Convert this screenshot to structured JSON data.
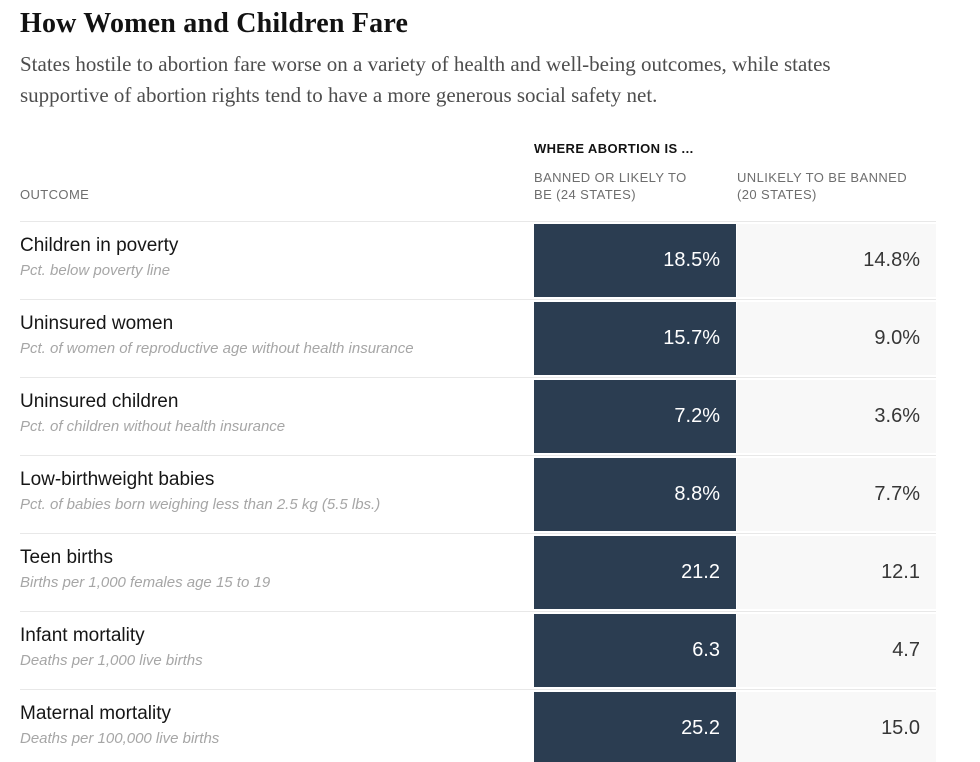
{
  "page": {
    "title": "How Women and Children Fare",
    "subtitle": "States hostile to abortion fare worse on a variety of health and well-being outcomes, while states supportive of abortion rights tend to have a more generous social safety net."
  },
  "table_header": {
    "group": "WHERE ABORTION IS ...",
    "outcome": "OUTCOME",
    "banned_line1": "BANNED OR LIKELY TO",
    "banned_line2": "BE (24 STATES)",
    "unlikely_line1": "UNLIKELY TO BE BANNED",
    "unlikely_line2": "(20 STATES)"
  },
  "chart_data": {
    "type": "table",
    "title": "How Women and Children Fare",
    "subtitle": "States hostile to abortion fare worse on a variety of health and well-being outcomes, while states supportive of abortion rights tend to have a more generous social safety net.",
    "group_header": "WHERE ABORTION IS ...",
    "columns": [
      "OUTCOME",
      "BANNED OR LIKELY TO BE (24 STATES)",
      "UNLIKELY TO BE BANNED (20 STATES)"
    ],
    "rows": [
      {
        "outcome": "Children in poverty",
        "description": "Pct. below poverty line",
        "banned": "18.5%",
        "unlikely": "14.8%"
      },
      {
        "outcome": "Uninsured women",
        "description": "Pct. of women of reproductive age without health insurance",
        "banned": "15.7%",
        "unlikely": "9.0%"
      },
      {
        "outcome": "Uninsured children",
        "description": "Pct. of children without health insurance",
        "banned": "7.2%",
        "unlikely": "3.6%"
      },
      {
        "outcome": "Low-birthweight babies",
        "description": "Pct. of babies born weighing less than 2.5 kg (5.5 lbs.)",
        "banned": "8.8%",
        "unlikely": "7.7%"
      },
      {
        "outcome": "Teen births",
        "description": "Births per 1,000 females age 15 to 19",
        "banned": "21.2",
        "unlikely": "12.1"
      },
      {
        "outcome": "Infant mortality",
        "description": "Deaths per 1,000 live births",
        "banned": "6.3",
        "unlikely": "4.7"
      },
      {
        "outcome": "Maternal mortality",
        "description": "Deaths per 100,000 live births",
        "banned": "25.2",
        "unlikely": "15.0"
      }
    ],
    "colors": {
      "banned_cell_bg": "#2b3d51",
      "banned_cell_text": "#ffffff",
      "unlikely_cell_bg": "#f8f8f8",
      "unlikely_cell_text": "#363636",
      "row_separator": "#e8e8e8"
    }
  }
}
